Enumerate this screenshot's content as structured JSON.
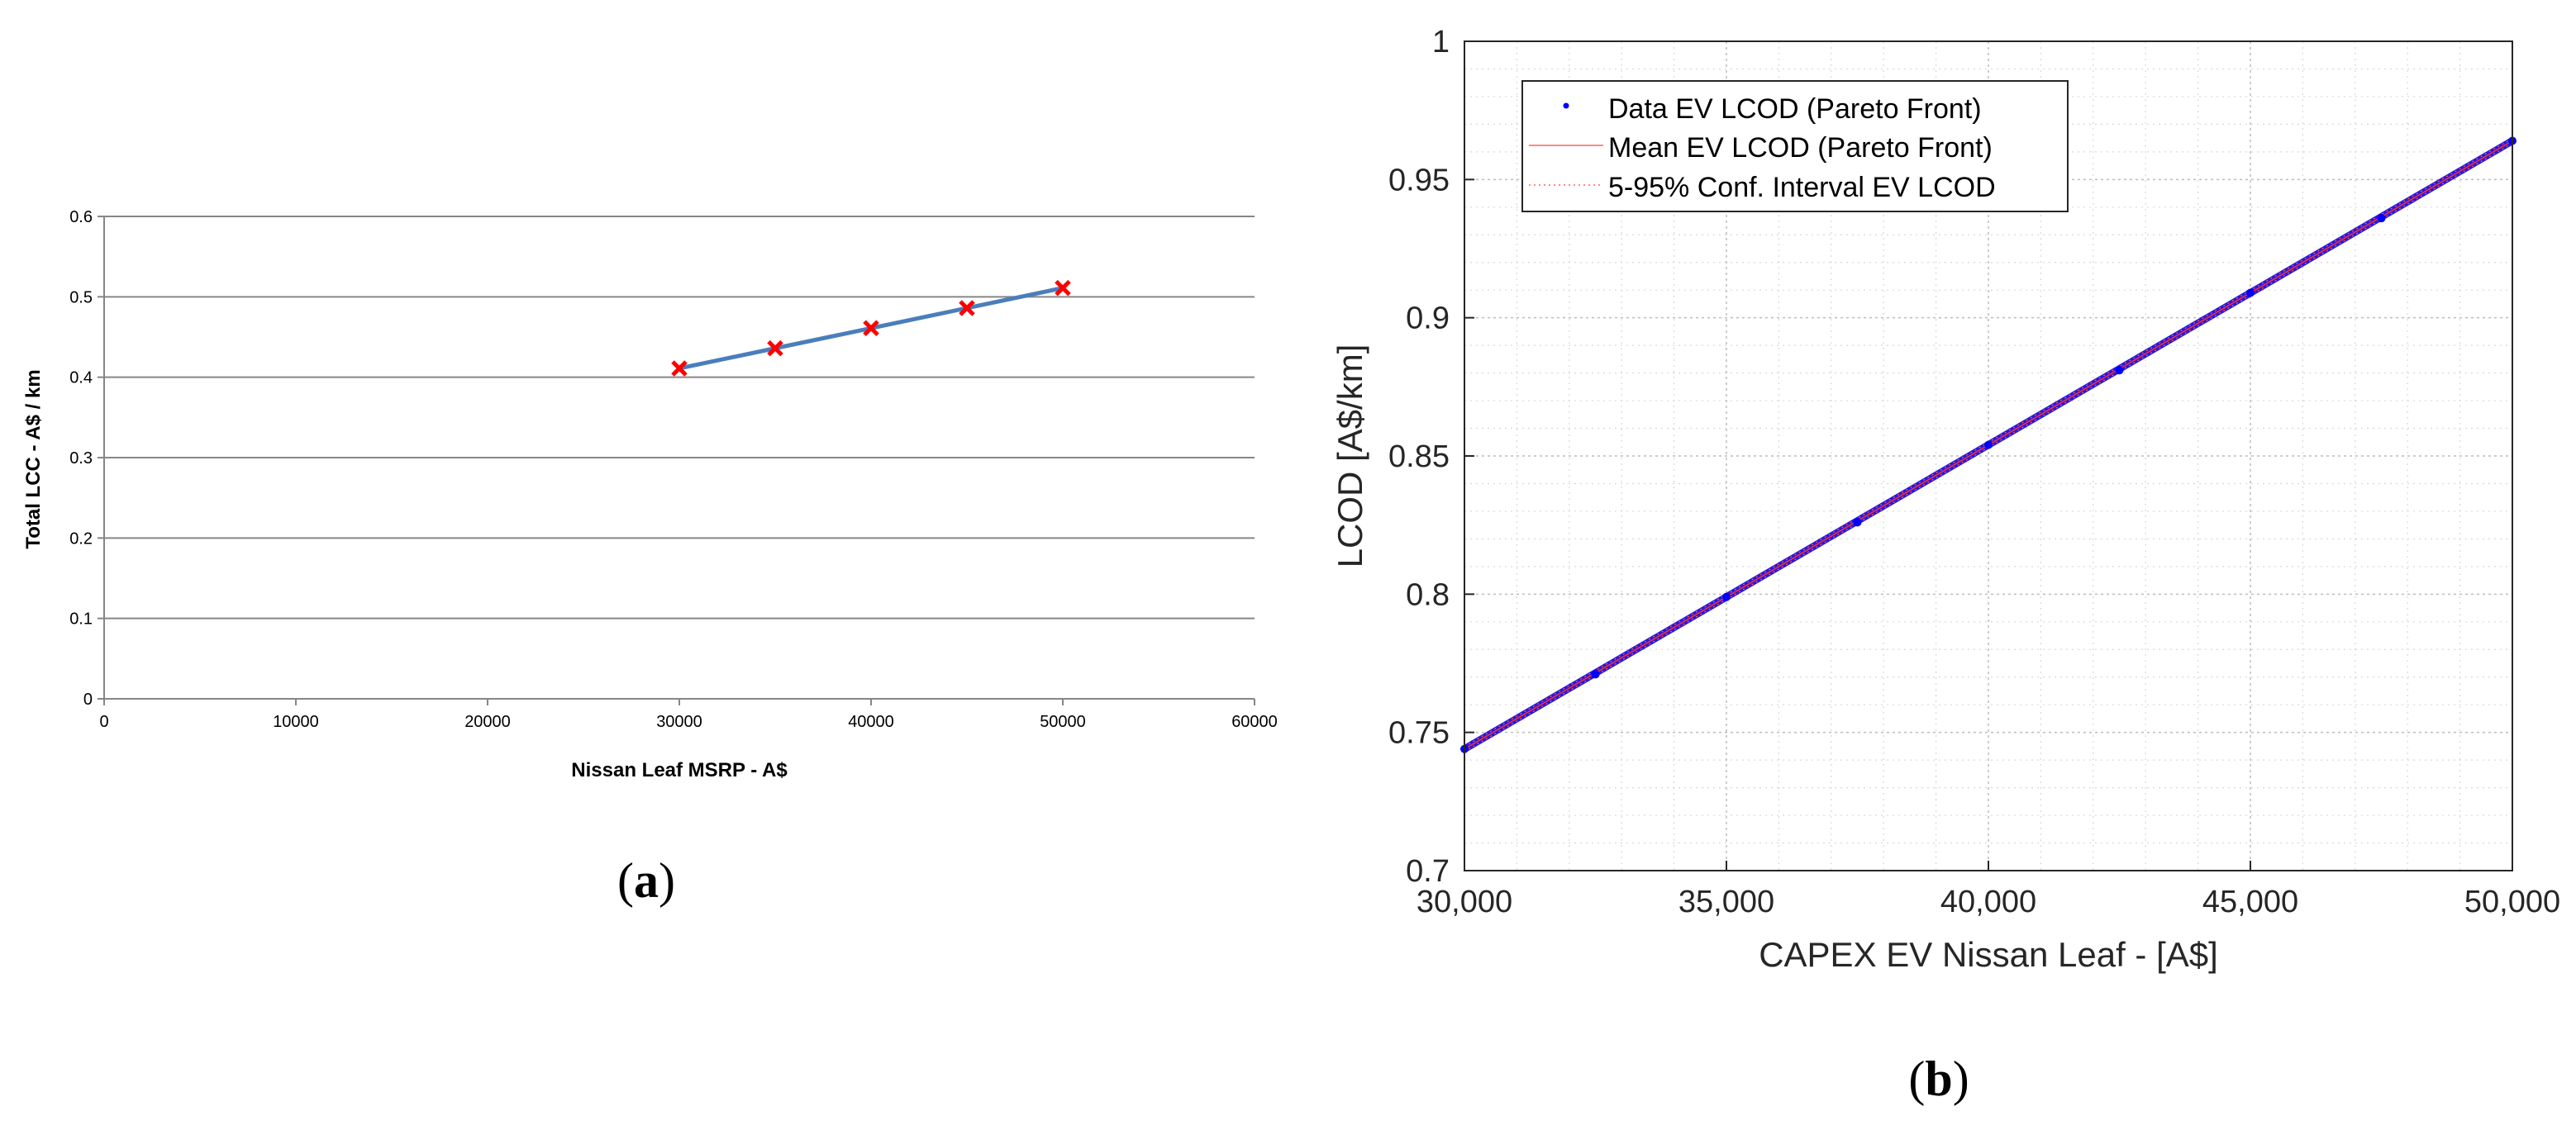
{
  "panel_a": {
    "label": "(a)",
    "label_letter": "a",
    "chart_data": {
      "type": "line",
      "title": "",
      "xlabel": "Nissan Leaf MSRP - A$",
      "ylabel": "Total LCC - A$ / km",
      "xlim": [
        0,
        60000
      ],
      "ylim": [
        0,
        0.6
      ],
      "xticks": [
        0,
        10000,
        20000,
        30000,
        40000,
        50000,
        60000
      ],
      "xtick_labels": [
        "0",
        "10000",
        "20000",
        "30000",
        "40000",
        "50000",
        "60000"
      ],
      "yticks": [
        0,
        0.1,
        0.2,
        0.3,
        0.4,
        0.5,
        0.6
      ],
      "ytick_labels": [
        "0",
        "0.1",
        "0.2",
        "0.3",
        "0.4",
        "0.5",
        "0.6"
      ],
      "grid": "horizontal",
      "series": [
        {
          "name": "Total LCC",
          "x": [
            30000,
            35000,
            40000,
            45000,
            50000
          ],
          "y": [
            0.411,
            0.436,
            0.461,
            0.486,
            0.511
          ],
          "line_color": "#4a7ebb",
          "marker": "x",
          "marker_color": "#ff0000"
        }
      ]
    }
  },
  "panel_b": {
    "label": "(b)",
    "label_letter": "b",
    "chart_data": {
      "type": "line",
      "title": "",
      "xlabel": "CAPEX EV Nissan Leaf - [A$]",
      "ylabel": "LCOD [A$/km]",
      "xlim": [
        30000,
        50000
      ],
      "ylim": [
        0.7,
        1.0
      ],
      "xticks": [
        30000,
        35000,
        40000,
        45000,
        50000
      ],
      "xtick_labels": [
        "30,000",
        "35,000",
        "40,000",
        "45,000",
        "50,000"
      ],
      "yticks": [
        0.7,
        0.75,
        0.8,
        0.85,
        0.9,
        0.95,
        1.0
      ],
      "ytick_labels": [
        "0.7",
        "0.75",
        "0.8",
        "0.85",
        "0.9",
        "0.95",
        "1"
      ],
      "grid": "dotted-major-minor",
      "legend_position": "top-left",
      "series": [
        {
          "name": "Data EV LCOD (Pareto Front)",
          "style": "points",
          "color": "#0000ff",
          "x": [
            30000,
            32500,
            35000,
            37500,
            40000,
            42500,
            45000,
            47500,
            50000
          ],
          "y": [
            0.744,
            0.771,
            0.799,
            0.826,
            0.854,
            0.881,
            0.909,
            0.936,
            0.964
          ]
        },
        {
          "name": "Mean EV LCOD (Pareto Front)",
          "style": "solid",
          "color": "#ff0000",
          "x": [
            30000,
            50000
          ],
          "y": [
            0.744,
            0.964
          ]
        },
        {
          "name": "5-95% Conf. Interval EV LCOD",
          "style": "dotted",
          "color": "#ff0000",
          "x": [
            30000,
            50000
          ],
          "y": [
            0.744,
            0.964
          ]
        }
      ]
    }
  }
}
